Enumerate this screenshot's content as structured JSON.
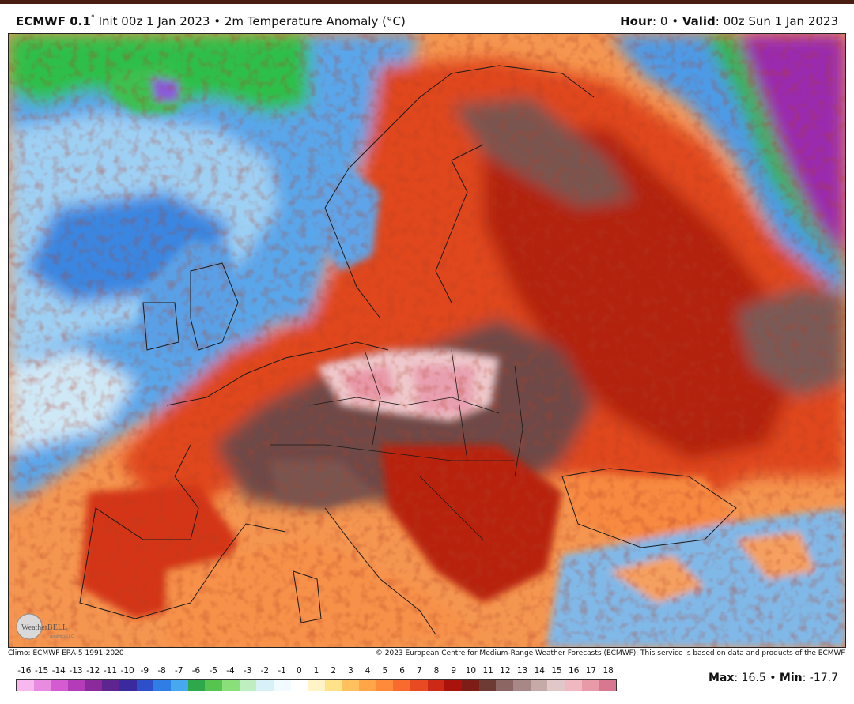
{
  "header": {
    "model": "ECMWF 0.1",
    "model_sup": "°",
    "init": "Init 00z 1 Jan 2023",
    "bullet": "•",
    "field": "2m Temperature Anomaly (°C)",
    "hour_label": "Hour",
    "hour_value": ": 0",
    "valid_label": "Valid",
    "valid_value": ": 00z Sun 1 Jan 2023"
  },
  "logo": {
    "text": "WeatherBELL",
    "sub": "Analytics LLC"
  },
  "credits": {
    "left": "Climo: ECMWF ERA-5 1991-2020",
    "right": "© 2023 European Centre for Medium-Range Weather Forecasts (ECMWF). This service is based on data and products of the ECMWF."
  },
  "legend": {
    "ticks": [
      "-16",
      "-15",
      "-14",
      "-13",
      "-12",
      "-11",
      "-10",
      "-9",
      "-8",
      "-7",
      "-6",
      "-5",
      "-4",
      "-3",
      "-2",
      "-1",
      "0",
      "1",
      "2",
      "3",
      "4",
      "5",
      "6",
      "7",
      "8",
      "9",
      "10",
      "11",
      "12",
      "13",
      "14",
      "15",
      "16",
      "17",
      "18"
    ],
    "colors": [
      "#f7b8f0",
      "#e98be0",
      "#d45bd0",
      "#b43cb8",
      "#8a2a9c",
      "#5e2490",
      "#3a2a9e",
      "#2e4fc8",
      "#2f7ee6",
      "#47a8f0",
      "#2ea84a",
      "#56c450",
      "#8adf7a",
      "#bfeec0",
      "#d8f0f8",
      "#f2fbff",
      "#ffffff",
      "#fff4c8",
      "#ffe28a",
      "#ffc060",
      "#ffa648",
      "#ff8a3a",
      "#f86a2e",
      "#e84a22",
      "#cc2a16",
      "#a8140c",
      "#7e1d18",
      "#6e3a34",
      "#8c6662",
      "#a88886",
      "#c6aaa8",
      "#e0c8c8",
      "#f0b8c0",
      "#e89aa8",
      "#d87890"
    ]
  },
  "stats": {
    "max_label": "Max",
    "max_value": ": 16.5",
    "sep": "•",
    "min_label": "Min",
    "min_value": ": -17.7"
  },
  "map": {
    "region": "Europe",
    "colors": {
      "ocean_cold": "#4f9be6",
      "ocean_mid": "#8fc6f2",
      "greenland": "#2fbf4a",
      "warm_orange": "#f5893f",
      "hot_red": "#c8280f",
      "extreme_brown": "#7a5550",
      "extreme_pink": "#f0c0c8",
      "russia_purple": "#a02ab0"
    }
  }
}
